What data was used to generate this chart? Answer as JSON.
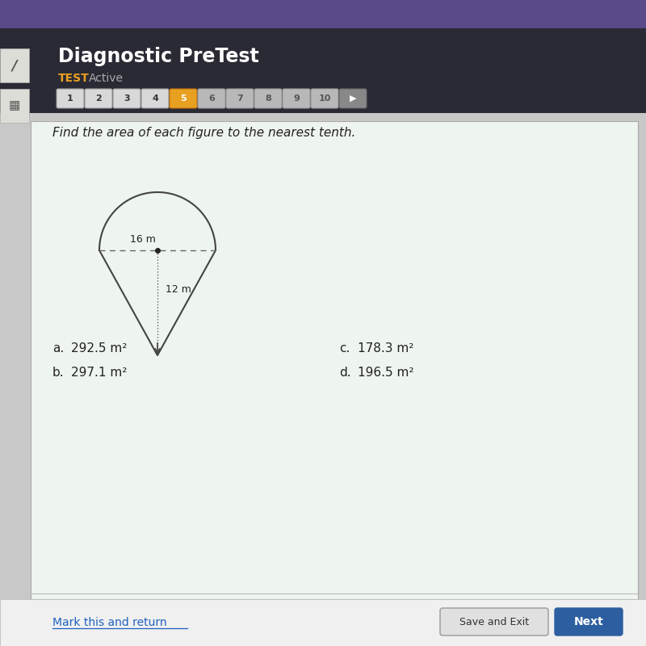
{
  "title": "Diagnostic PreTest",
  "subtitle_test": "TEST",
  "subtitle_active": "Active",
  "question": "Find the area of each figure to the nearest tenth.",
  "nav_buttons": [
    "1",
    "2",
    "3",
    "4",
    "5",
    "6",
    "7",
    "8",
    "9",
    "10"
  ],
  "active_button_idx": 4,
  "dim1": "16 m",
  "dim2": "12 m",
  "answers": [
    {
      "label": "a.",
      "text": "292.5 m²"
    },
    {
      "label": "b.",
      "text": "297.1 m²"
    },
    {
      "label": "c.",
      "text": "178.3 m²"
    },
    {
      "label": "d.",
      "text": "196.5 m²"
    }
  ],
  "bg_color": "#c8c8c8",
  "purple_bar_color": "#5b4a8a",
  "dark_header_color": "#2a2a35",
  "content_bg_color": "#eef4ee",
  "button_default_color": "#d8d8d8",
  "button_active_color": "#e8a020",
  "button_dim_color": "#b8b8b8",
  "bottom_bar_color": "#f0f0f0",
  "save_btn_color": "#e0e0e0",
  "next_btn_color": "#2d5fa0",
  "mark_link_color": "#2060c0",
  "shape_color": "#444444",
  "dashed_color": "#666666"
}
